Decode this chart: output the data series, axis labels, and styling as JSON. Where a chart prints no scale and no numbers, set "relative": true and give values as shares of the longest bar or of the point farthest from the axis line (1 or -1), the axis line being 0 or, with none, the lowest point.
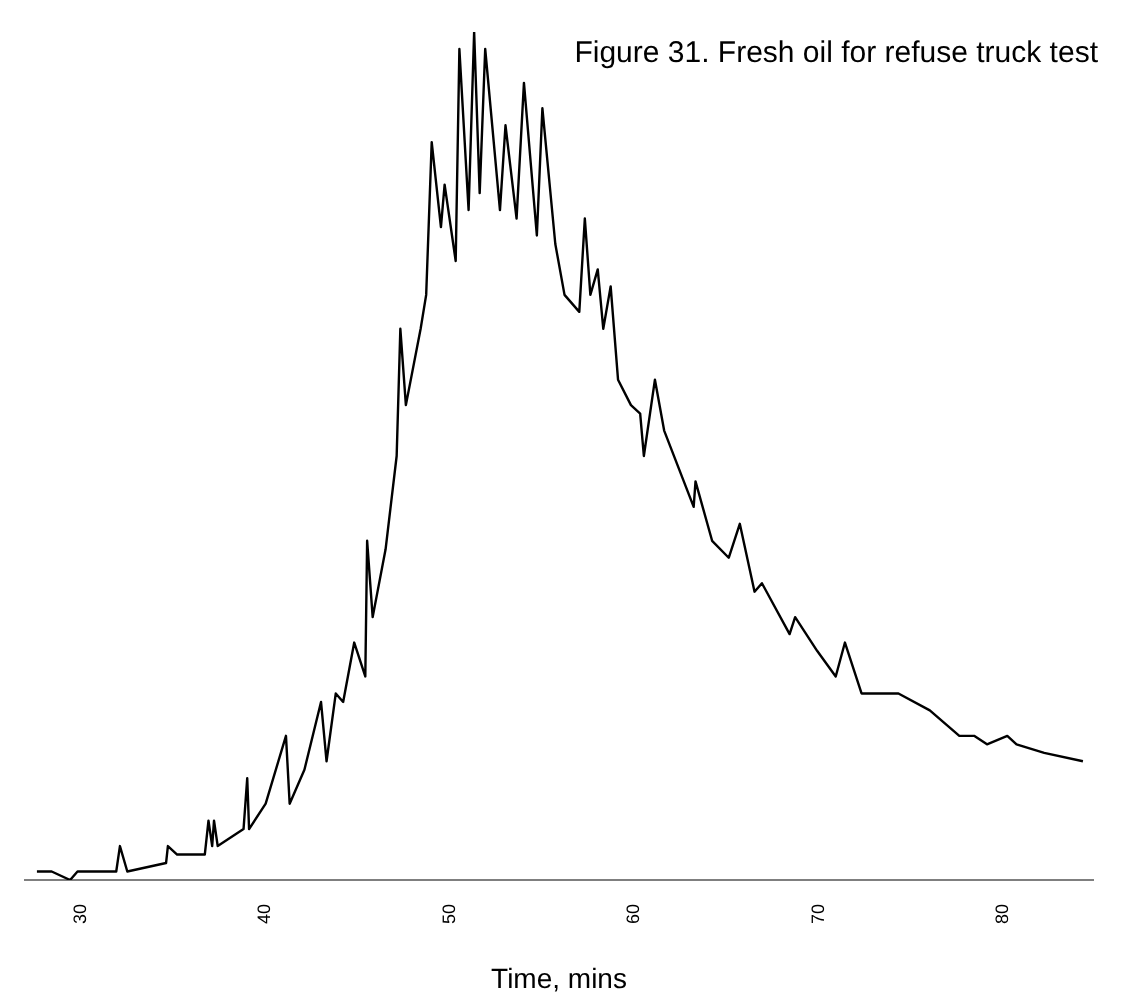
{
  "chart_data": {
    "type": "line",
    "title": "Figure 31. Fresh oil for refuse truck test",
    "xlabel": "Time, mins",
    "relative": true,
    "xlim": [
      27,
      85
    ],
    "xticks": [
      30,
      40,
      50,
      60,
      70,
      80
    ],
    "marker": "none",
    "line_style": "solid",
    "series": [
      {
        "color": "#000000",
        "x": [
          27.7,
          28.5,
          29.5,
          29.9,
          32.0,
          32.2,
          32.6,
          34.7,
          34.8,
          35.3,
          36.8,
          37.0,
          37.2,
          37.3,
          37.5,
          38.9,
          39.1,
          39.2,
          40.1,
          41.2,
          41.4,
          42.2,
          43.1,
          43.4,
          43.9,
          44.3,
          44.9,
          45.5,
          45.6,
          45.9,
          46.6,
          47.2,
          47.4,
          47.7,
          48.5,
          48.8,
          49.1,
          49.6,
          49.8,
          50.2,
          50.4,
          50.6,
          51.1,
          51.4,
          51.7,
          52.0,
          52.8,
          53.1,
          53.7,
          54.1,
          54.8,
          55.1,
          55.8,
          56.3,
          57.1,
          57.4,
          57.7,
          58.1,
          58.4,
          58.8,
          59.2,
          59.9,
          60.4,
          60.6,
          61.2,
          61.7,
          63.3,
          63.4,
          64.3,
          65.2,
          65.8,
          66.6,
          67.0,
          68.5,
          68.8,
          70.0,
          71.0,
          71.5,
          72.4,
          73.4,
          74.4,
          76.1,
          77.7,
          78.5,
          79.2,
          80.3,
          80.8,
          82.3,
          84.4
        ],
        "values": [
          0.01,
          0.01,
          0,
          0.01,
          0.01,
          0.04,
          0.01,
          0.02,
          0.04,
          0.03,
          0.03,
          0.07,
          0.04,
          0.07,
          0.04,
          0.06,
          0.12,
          0.06,
          0.09,
          0.17,
          0.09,
          0.13,
          0.21,
          0.14,
          0.22,
          0.21,
          0.28,
          0.24,
          0.4,
          0.31,
          0.39,
          0.5,
          0.65,
          0.56,
          0.65,
          0.69,
          0.87,
          0.77,
          0.82,
          0.76,
          0.73,
          0.98,
          0.79,
          1,
          0.81,
          0.98,
          0.79,
          0.89,
          0.78,
          0.94,
          0.76,
          0.91,
          0.75,
          0.69,
          0.67,
          0.78,
          0.69,
          0.72,
          0.65,
          0.7,
          0.59,
          0.56,
          0.55,
          0.5,
          0.59,
          0.53,
          0.44,
          0.47,
          0.4,
          0.38,
          0.42,
          0.34,
          0.35,
          0.29,
          0.31,
          0.27,
          0.24,
          0.28,
          0.22,
          0.22,
          0.22,
          0.2,
          0.17,
          0.17,
          0.16,
          0.17,
          0.16,
          0.15,
          0.14
        ]
      }
    ]
  }
}
